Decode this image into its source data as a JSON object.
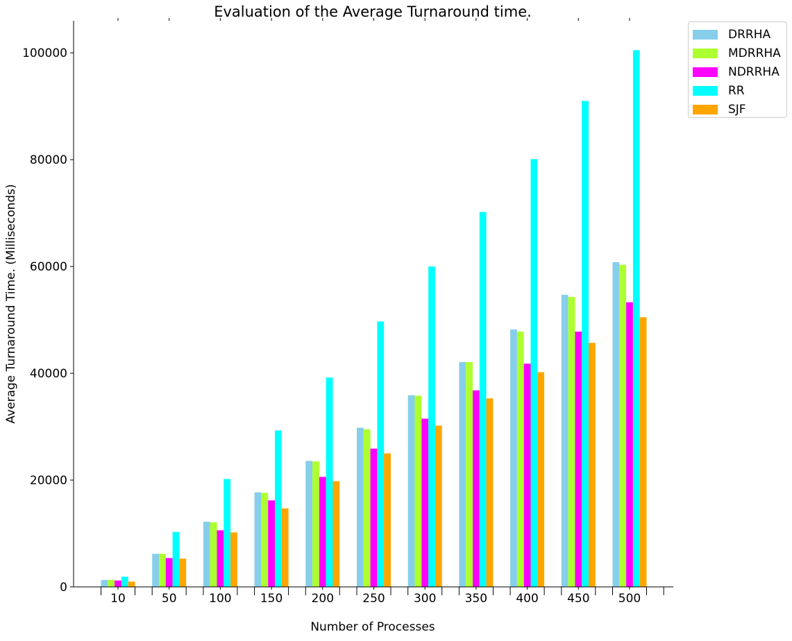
{
  "chart_data": {
    "type": "bar",
    "title": "Evaluation of the Average Turnaround time.",
    "xlabel": "Number of Processes",
    "ylabel": "Average Turnaround Time. (Milliseconds)",
    "categories": [
      "10",
      "50",
      "100",
      "150",
      "200",
      "250",
      "300",
      "350",
      "400",
      "450",
      "500"
    ],
    "ylim": [
      0,
      106000
    ],
    "yticks": [
      0,
      20000,
      40000,
      60000,
      80000,
      100000
    ],
    "grid": false,
    "legend_position": "outside-top-right",
    "series": [
      {
        "name": "DRRHA",
        "color": "#87ceeb",
        "values": [
          1300,
          6200,
          12200,
          17700,
          23600,
          29800,
          35900,
          42100,
          48200,
          54700,
          60800
        ]
      },
      {
        "name": "MDRRHA",
        "color": "#adff2f",
        "values": [
          1300,
          6200,
          12100,
          17600,
          23500,
          29500,
          35800,
          42100,
          47800,
          54300,
          60300
        ]
      },
      {
        "name": "NDRRHA",
        "color": "#ff00ff",
        "values": [
          1200,
          5400,
          10600,
          16200,
          20600,
          25900,
          31500,
          36800,
          41800,
          47800,
          53300
        ]
      },
      {
        "name": "RR",
        "color": "#00ffff",
        "values": [
          1900,
          10300,
          20200,
          29300,
          39200,
          49700,
          60000,
          70200,
          80100,
          91000,
          100500
        ]
      },
      {
        "name": "SJF",
        "color": "#ffa500",
        "values": [
          1000,
          5300,
          10200,
          14700,
          19800,
          25000,
          30200,
          35300,
          40200,
          45700,
          50500
        ]
      }
    ]
  }
}
